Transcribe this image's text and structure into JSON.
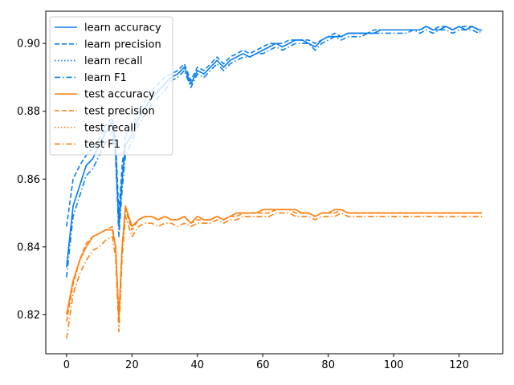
{
  "chart_data": {
    "type": "line",
    "title": "",
    "xlabel": "",
    "ylabel": "",
    "xlim": [
      -6.35,
      133.35
    ],
    "ylim": [
      0.8085,
      0.9095
    ],
    "x_ticks": [
      0,
      20,
      40,
      60,
      80,
      100,
      120
    ],
    "y_ticks": [
      0.82,
      0.84,
      0.86,
      0.88,
      0.9
    ],
    "y_tick_labels": [
      "0.82",
      "0.84",
      "0.86",
      "0.88",
      "0.90"
    ],
    "grid": false,
    "legend_position": "top-left",
    "colors": {
      "learn": "#0a7ff0",
      "test": "#ff7f0e"
    },
    "x": [
      0,
      2,
      4,
      6,
      8,
      10,
      12,
      14,
      15,
      16,
      17,
      18,
      20,
      22,
      24,
      26,
      28,
      30,
      32,
      34,
      36,
      38,
      40,
      42,
      44,
      46,
      48,
      50,
      52,
      54,
      56,
      58,
      60,
      62,
      64,
      66,
      68,
      70,
      72,
      74,
      76,
      78,
      80,
      82,
      84,
      86,
      88,
      90,
      92,
      94,
      96,
      98,
      100,
      102,
      104,
      106,
      108,
      110,
      112,
      114,
      116,
      118,
      120,
      122,
      124,
      126,
      127
    ],
    "series": [
      {
        "name": "learn accuracy",
        "group": "learn",
        "style": "solid",
        "values": [
          0.834,
          0.852,
          0.858,
          0.864,
          0.866,
          0.87,
          0.874,
          0.877,
          0.868,
          0.846,
          0.86,
          0.87,
          0.873,
          0.878,
          0.881,
          0.884,
          0.886,
          0.888,
          0.89,
          0.891,
          0.893,
          0.888,
          0.892,
          0.891,
          0.893,
          0.895,
          0.893,
          0.895,
          0.896,
          0.897,
          0.896,
          0.897,
          0.898,
          0.899,
          0.9,
          0.899,
          0.9,
          0.901,
          0.901,
          0.9,
          0.899,
          0.901,
          0.902,
          0.902,
          0.902,
          0.903,
          0.903,
          0.903,
          0.903,
          0.903,
          0.904,
          0.904,
          0.904,
          0.904,
          0.904,
          0.904,
          0.904,
          0.905,
          0.904,
          0.904,
          0.905,
          0.904,
          0.905,
          0.904,
          0.905,
          0.904,
          0.904
        ]
      },
      {
        "name": "learn precision",
        "group": "learn",
        "style": "dashed",
        "values": [
          0.846,
          0.86,
          0.864,
          0.867,
          0.869,
          0.872,
          0.876,
          0.878,
          0.871,
          0.85,
          0.864,
          0.873,
          0.875,
          0.88,
          0.883,
          0.886,
          0.888,
          0.89,
          0.891,
          0.892,
          0.894,
          0.889,
          0.893,
          0.892,
          0.894,
          0.896,
          0.894,
          0.896,
          0.897,
          0.898,
          0.897,
          0.898,
          0.899,
          0.9,
          0.9,
          0.9,
          0.901,
          0.901,
          0.901,
          0.901,
          0.9,
          0.901,
          0.902,
          0.903,
          0.902,
          0.903,
          0.903,
          0.903,
          0.903,
          0.904,
          0.904,
          0.904,
          0.904,
          0.904,
          0.904,
          0.904,
          0.904,
          0.905,
          0.904,
          0.905,
          0.905,
          0.904,
          0.905,
          0.905,
          0.905,
          0.904,
          0.904
        ]
      },
      {
        "name": "learn recall",
        "group": "learn",
        "style": "dotted",
        "values": [
          0.834,
          0.852,
          0.858,
          0.864,
          0.866,
          0.87,
          0.874,
          0.877,
          0.868,
          0.846,
          0.86,
          0.87,
          0.873,
          0.878,
          0.881,
          0.884,
          0.886,
          0.888,
          0.89,
          0.891,
          0.893,
          0.888,
          0.892,
          0.891,
          0.893,
          0.895,
          0.893,
          0.895,
          0.896,
          0.897,
          0.896,
          0.897,
          0.898,
          0.899,
          0.9,
          0.899,
          0.9,
          0.901,
          0.901,
          0.9,
          0.899,
          0.901,
          0.902,
          0.902,
          0.902,
          0.903,
          0.903,
          0.903,
          0.903,
          0.903,
          0.904,
          0.904,
          0.904,
          0.904,
          0.904,
          0.904,
          0.904,
          0.905,
          0.904,
          0.904,
          0.905,
          0.904,
          0.905,
          0.904,
          0.905,
          0.904,
          0.904
        ]
      },
      {
        "name": "learn F1",
        "group": "learn",
        "style": "dashdot",
        "values": [
          0.831,
          0.849,
          0.855,
          0.861,
          0.863,
          0.867,
          0.871,
          0.874,
          0.866,
          0.843,
          0.857,
          0.867,
          0.871,
          0.876,
          0.879,
          0.882,
          0.884,
          0.886,
          0.889,
          0.89,
          0.892,
          0.887,
          0.891,
          0.89,
          0.892,
          0.894,
          0.892,
          0.894,
          0.895,
          0.896,
          0.896,
          0.897,
          0.897,
          0.898,
          0.899,
          0.898,
          0.899,
          0.9,
          0.9,
          0.9,
          0.898,
          0.9,
          0.901,
          0.902,
          0.901,
          0.902,
          0.902,
          0.902,
          0.903,
          0.903,
          0.903,
          0.903,
          0.903,
          0.903,
          0.903,
          0.904,
          0.903,
          0.904,
          0.903,
          0.904,
          0.904,
          0.903,
          0.904,
          0.904,
          0.904,
          0.903,
          0.904
        ]
      },
      {
        "name": "test accuracy",
        "group": "test",
        "style": "solid",
        "values": [
          0.82,
          0.83,
          0.836,
          0.84,
          0.843,
          0.844,
          0.845,
          0.845,
          0.84,
          0.819,
          0.84,
          0.852,
          0.846,
          0.848,
          0.849,
          0.849,
          0.848,
          0.849,
          0.848,
          0.848,
          0.849,
          0.847,
          0.849,
          0.848,
          0.848,
          0.849,
          0.848,
          0.849,
          0.85,
          0.85,
          0.85,
          0.85,
          0.851,
          0.851,
          0.851,
          0.851,
          0.851,
          0.851,
          0.85,
          0.85,
          0.849,
          0.85,
          0.85,
          0.851,
          0.851,
          0.85,
          0.85,
          0.85,
          0.85,
          0.85,
          0.85,
          0.85,
          0.85,
          0.85,
          0.85,
          0.85,
          0.85,
          0.85,
          0.85,
          0.85,
          0.85,
          0.85,
          0.85,
          0.85,
          0.85,
          0.85,
          0.85
        ]
      },
      {
        "name": "test precision",
        "group": "test",
        "style": "dashed",
        "values": [
          0.818,
          0.829,
          0.836,
          0.841,
          0.843,
          0.844,
          0.845,
          0.846,
          0.84,
          0.819,
          0.84,
          0.851,
          0.845,
          0.848,
          0.849,
          0.849,
          0.848,
          0.849,
          0.848,
          0.848,
          0.849,
          0.847,
          0.848,
          0.848,
          0.848,
          0.849,
          0.848,
          0.849,
          0.849,
          0.85,
          0.85,
          0.85,
          0.85,
          0.85,
          0.851,
          0.851,
          0.851,
          0.85,
          0.85,
          0.85,
          0.849,
          0.85,
          0.85,
          0.85,
          0.851,
          0.85,
          0.85,
          0.85,
          0.85,
          0.85,
          0.85,
          0.85,
          0.85,
          0.85,
          0.85,
          0.85,
          0.85,
          0.85,
          0.85,
          0.85,
          0.85,
          0.85,
          0.85,
          0.85,
          0.85,
          0.85,
          0.85
        ]
      },
      {
        "name": "test recall",
        "group": "test",
        "style": "dotted",
        "values": [
          0.82,
          0.83,
          0.836,
          0.84,
          0.843,
          0.844,
          0.845,
          0.845,
          0.84,
          0.819,
          0.84,
          0.852,
          0.846,
          0.848,
          0.849,
          0.849,
          0.848,
          0.849,
          0.848,
          0.848,
          0.849,
          0.847,
          0.849,
          0.848,
          0.848,
          0.849,
          0.848,
          0.849,
          0.85,
          0.85,
          0.85,
          0.85,
          0.851,
          0.851,
          0.851,
          0.851,
          0.851,
          0.851,
          0.85,
          0.85,
          0.849,
          0.85,
          0.85,
          0.851,
          0.851,
          0.85,
          0.85,
          0.85,
          0.85,
          0.85,
          0.85,
          0.85,
          0.85,
          0.85,
          0.85,
          0.85,
          0.85,
          0.85,
          0.85,
          0.85,
          0.85,
          0.85,
          0.85,
          0.85,
          0.85,
          0.85,
          0.85
        ]
      },
      {
        "name": "test F1",
        "group": "test",
        "style": "dashdot",
        "values": [
          0.813,
          0.826,
          0.832,
          0.836,
          0.839,
          0.84,
          0.842,
          0.843,
          0.837,
          0.815,
          0.837,
          0.849,
          0.843,
          0.846,
          0.847,
          0.847,
          0.846,
          0.847,
          0.847,
          0.846,
          0.847,
          0.846,
          0.847,
          0.847,
          0.847,
          0.848,
          0.847,
          0.848,
          0.848,
          0.849,
          0.849,
          0.849,
          0.849,
          0.849,
          0.85,
          0.85,
          0.85,
          0.849,
          0.849,
          0.849,
          0.848,
          0.849,
          0.849,
          0.849,
          0.85,
          0.849,
          0.849,
          0.849,
          0.849,
          0.849,
          0.849,
          0.849,
          0.849,
          0.849,
          0.849,
          0.849,
          0.849,
          0.849,
          0.849,
          0.849,
          0.849,
          0.849,
          0.849,
          0.849,
          0.849,
          0.849,
          0.849
        ]
      }
    ]
  }
}
